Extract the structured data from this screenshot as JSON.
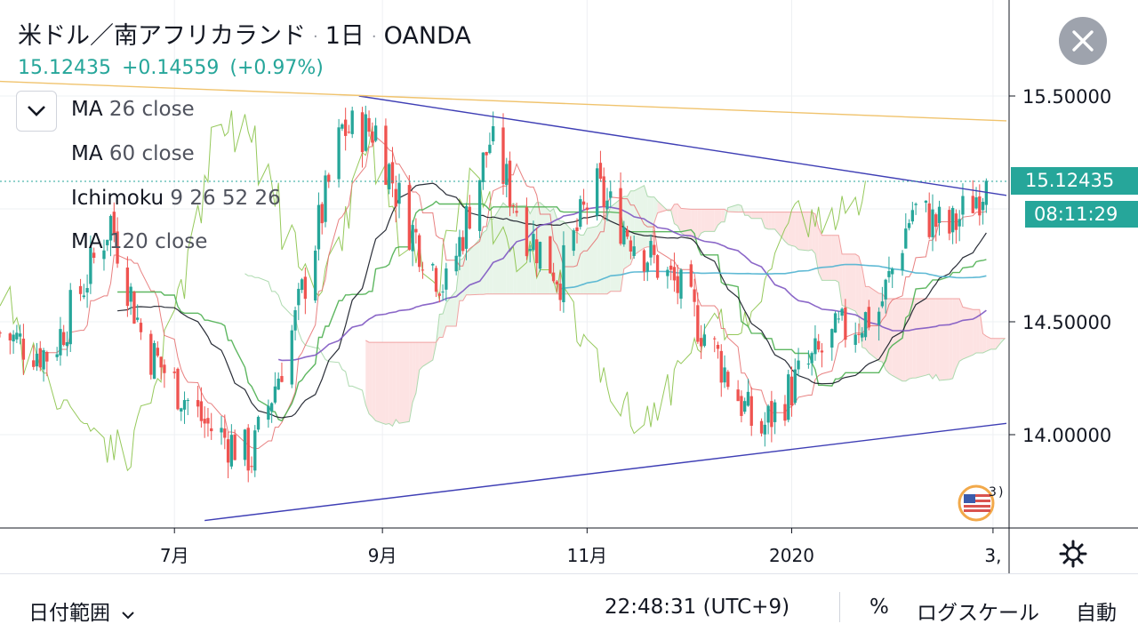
{
  "header": {
    "symbol": "米ドル／南アフリカランド",
    "interval": "1日",
    "source": "OANDA",
    "separator": "·"
  },
  "quote": {
    "last": "15.12435",
    "change": "+0.14559",
    "change_pct": "(+0.97%)"
  },
  "legend": [
    {
      "name": "MA",
      "params": "26 close"
    },
    {
      "name": "MA",
      "params": "60 close"
    },
    {
      "name": "Ichimoku",
      "params": "9 26 52 26"
    },
    {
      "name": "MA",
      "params": "120 close"
    }
  ],
  "price_tag": "15.12435",
  "countdown": "08:11:29",
  "flag_badge": "3",
  "bottom_bar": {
    "date_range": "日付範囲",
    "clock": "22:48:31 (UTC+9)",
    "percent": "%",
    "log_scale": "ログスケール",
    "auto": "自動"
  },
  "colors": {
    "up": "#26a69a",
    "down": "#ef5350",
    "ma26": "#131722",
    "ma60": "#7e57c2",
    "ma120": "#4fb3d0",
    "kijun": "#4caf50",
    "tenkan": "#e57373",
    "chikou": "#8bc34a",
    "cloud_bull": "#e8f5e9",
    "cloud_bear": "#fde3e3",
    "trendline": "#3f3fb5",
    "resistance": "#f0c36d"
  },
  "chart_data": {
    "type": "candlestick",
    "symbol": "USD/ZAR",
    "interval": "1日",
    "y_axis": {
      "min": 13.6,
      "max": 15.8,
      "ticks": [
        14.0,
        14.5,
        15.0,
        15.5
      ],
      "tick_labels": [
        "14.00000",
        "14.50000",
        "",
        "15.50000"
      ]
    },
    "x_axis": {
      "labels": [
        "7月",
        "9月",
        "11月",
        "2020",
        "3,"
      ]
    },
    "last_price": 15.12435,
    "anchors": [
      {
        "date": "2019-05-10",
        "close": 14.45
      },
      {
        "date": "2019-05-25",
        "close": 14.35
      },
      {
        "date": "2019-06-05",
        "close": 14.7
      },
      {
        "date": "2019-06-12",
        "close": 14.95
      },
      {
        "date": "2019-06-22",
        "close": 14.4
      },
      {
        "date": "2019-07-10",
        "close": 14.05
      },
      {
        "date": "2019-07-24",
        "close": 13.9
      },
      {
        "date": "2019-08-06",
        "close": 14.5
      },
      {
        "date": "2019-08-20",
        "close": 15.35
      },
      {
        "date": "2019-08-30",
        "close": 15.35
      },
      {
        "date": "2019-09-08",
        "close": 14.95
      },
      {
        "date": "2019-09-20",
        "close": 14.65
      },
      {
        "date": "2019-10-03",
        "close": 15.3
      },
      {
        "date": "2019-10-14",
        "close": 14.9
      },
      {
        "date": "2019-10-24",
        "close": 14.7
      },
      {
        "date": "2019-11-03",
        "close": 15.1
      },
      {
        "date": "2019-11-16",
        "close": 14.85
      },
      {
        "date": "2019-11-28",
        "close": 14.65
      },
      {
        "date": "2019-12-08",
        "close": 14.4
      },
      {
        "date": "2019-12-22",
        "close": 14.0
      },
      {
        "date": "2020-01-03",
        "close": 14.25
      },
      {
        "date": "2020-01-15",
        "close": 14.45
      },
      {
        "date": "2020-01-27",
        "close": 14.55
      },
      {
        "date": "2020-02-06",
        "close": 15.0
      },
      {
        "date": "2020-02-17",
        "close": 14.9
      },
      {
        "date": "2020-02-28",
        "close": 15.12
      }
    ],
    "trendlines": [
      {
        "label": "upper",
        "points": [
          [
            "2019-08-25",
            15.5
          ],
          [
            "2020-03-05",
            15.06
          ]
        ]
      },
      {
        "label": "lower",
        "points": [
          [
            "2019-07-10",
            13.62
          ],
          [
            "2020-03-05",
            14.05
          ]
        ]
      },
      {
        "label": "resistance",
        "points": [
          [
            "2019-05-01",
            15.57
          ],
          [
            "2020-03-05",
            15.39
          ]
        ]
      }
    ],
    "indicators": [
      "MA 26 close",
      "MA 60 close",
      "Ichimoku 9 26 52 26",
      "MA 120 close"
    ]
  }
}
